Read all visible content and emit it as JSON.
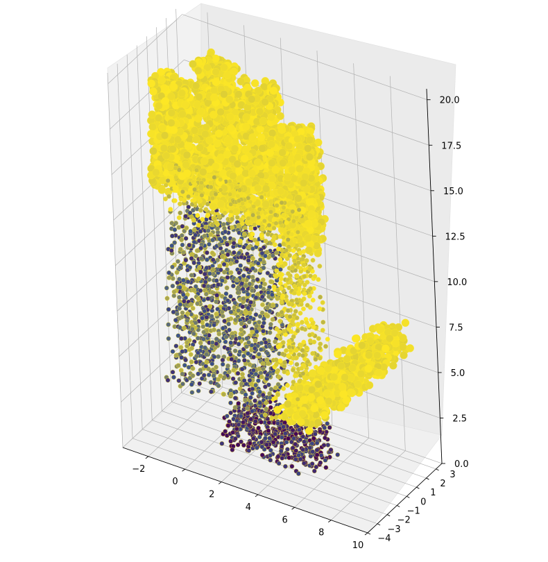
{
  "chart_data": {
    "type": "scatter",
    "projection": "3d",
    "title": "",
    "xlabel": "",
    "ylabel": "",
    "zlabel": "",
    "grid": true,
    "colormap": "viridis",
    "xlim": [
      -3.4,
      10
    ],
    "ylim": [
      -4,
      3.6
    ],
    "zlim": [
      0,
      20.6
    ],
    "x_ticks": [
      -2,
      0,
      2,
      4,
      6,
      8,
      10
    ],
    "x_tick_labels": [
      "−2",
      "0",
      "2",
      "4",
      "6",
      "8",
      "10"
    ],
    "y_ticks": [
      -4,
      -3,
      -2,
      -1,
      0,
      1,
      2,
      3
    ],
    "y_tick_labels": [
      "−4",
      "−3",
      "−2",
      "−1",
      "0",
      "1",
      "2",
      "3"
    ],
    "z_ticks": [
      0,
      2.5,
      5,
      7.5,
      10,
      12.5,
      15,
      17.5,
      20
    ],
    "z_tick_labels": [
      "0.0",
      "2.5",
      "5.0",
      "7.5",
      "10.0",
      "12.5",
      "15.0",
      "17.5",
      "20.0"
    ],
    "colors": {
      "point_high": "#fde725",
      "point_low": "#440154",
      "point_mid": "#3b528b",
      "pane": "#f2f2f2",
      "grid": "#b0b0b0"
    },
    "shape": "point cloud of a hand, palm facing viewer, fingers extended upward along z",
    "series": [
      {
        "part": "palm",
        "x_range": [
          -2.4,
          5.6
        ],
        "y_range": [
          -1.5,
          1.0
        ],
        "z_range": [
          2.5,
          14.5
        ]
      },
      {
        "part": "index-finger",
        "x_range": [
          -3.2,
          -1.0
        ],
        "y_range": [
          -0.5,
          0.6
        ],
        "z_range": [
          12.5,
          18.7
        ]
      },
      {
        "part": "middle-finger",
        "x_range": [
          -0.8,
          1.4
        ],
        "y_range": [
          -0.5,
          0.6
        ],
        "z_range": [
          12.5,
          20.6
        ]
      },
      {
        "part": "ring-finger",
        "x_range": [
          1.6,
          3.8
        ],
        "y_range": [
          -0.5,
          0.6
        ],
        "z_range": [
          12.5,
          20.1
        ]
      },
      {
        "part": "little-finger",
        "x_range": [
          3.8,
          5.8
        ],
        "y_range": [
          -0.5,
          0.6
        ],
        "z_range": [
          12.0,
          18.4
        ]
      },
      {
        "part": "thumb",
        "x_range": [
          4.5,
          9.6
        ],
        "y_range": [
          -1.5,
          0.8
        ],
        "z_range": [
          3.0,
          8.6
        ]
      },
      {
        "part": "wrist",
        "x_range": [
          0.6,
          5.8
        ],
        "y_range": [
          -1.6,
          1.0
        ],
        "z_range": [
          0.2,
          2.3
        ]
      }
    ]
  }
}
